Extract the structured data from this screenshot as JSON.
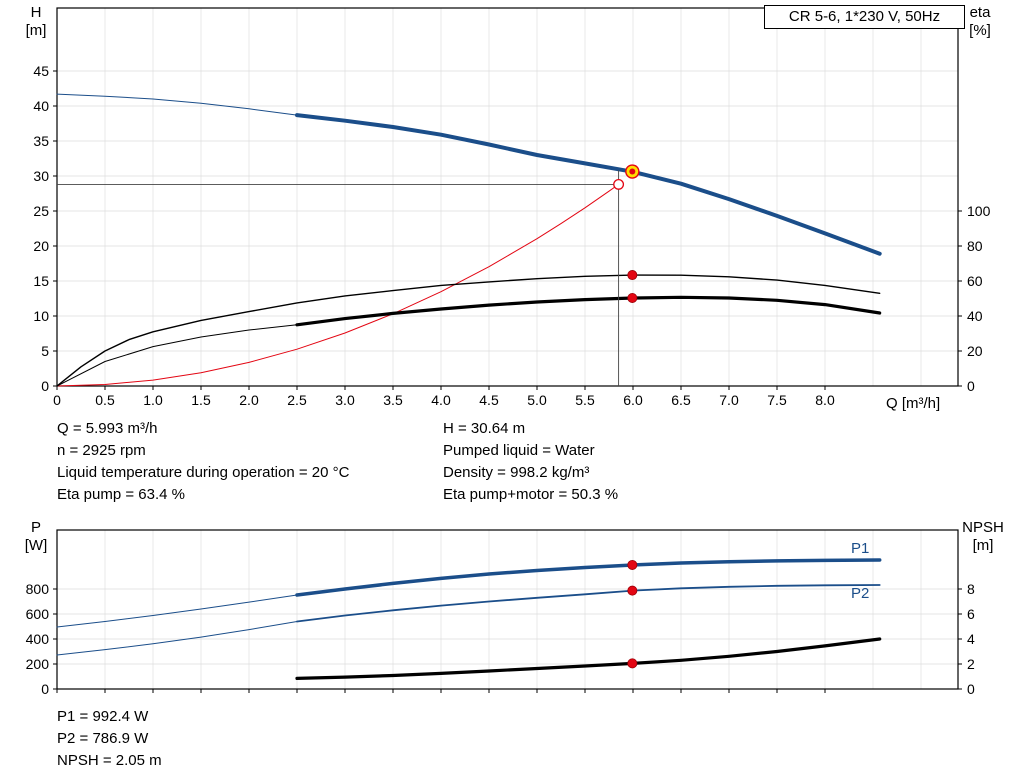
{
  "header": {
    "title_box": "CR 5-6, 1*230 V, 50Hz"
  },
  "top_chart": {
    "left_axis_title": "H",
    "left_axis_unit": "[m]",
    "right_axis_title": "eta",
    "right_axis_unit": "[%]",
    "x_axis_title": "Q [m³/h]"
  },
  "bottom_chart": {
    "left_axis_title": "P",
    "left_axis_unit": "[W]",
    "right_axis_title": "NPSH",
    "right_axis_unit": "[m]",
    "p1_label": "P1",
    "p2_label": "P2"
  },
  "info": {
    "left": [
      "Q = 5.993 m³/h",
      "n = 2925 rpm",
      "Liquid temperature during operation = 20 °C",
      "Eta pump = 63.4 %"
    ],
    "right": [
      "H = 30.64 m",
      "Pumped liquid = Water",
      "Density = 998.2 kg/m³",
      "Eta pump+motor = 50.3 %"
    ]
  },
  "results": [
    "P1 = 992.4 W",
    "P2 = 786.9 W",
    "NPSH = 2.05 m"
  ],
  "colors": {
    "curve_blue": "#1b4e8a",
    "curve_black": "#000000",
    "curve_red": "#e30613",
    "dot_red": "#e30613",
    "duty_yellow": "#ffdf00",
    "grid_gray": "#dedede"
  },
  "chart_data": [
    {
      "id": "qh-eta",
      "type": "line",
      "title": "CR 5-6, 1*230 V, 50Hz",
      "xlabel": "Q [m³/h]",
      "x_ticks": [
        0,
        0.5,
        1,
        1.5,
        2,
        2.5,
        3,
        3.5,
        4,
        4.5,
        5,
        5.5,
        6,
        6.5,
        7,
        7.5,
        8
      ],
      "x_tick_labels": [
        "0",
        "0.5",
        "1.0",
        "1.5",
        "2.0",
        "2.5",
        "3.0",
        "3.5",
        "4.0",
        "4.5",
        "5.0",
        "5.5",
        "6.0",
        "6.5",
        "7.0",
        "7.5",
        "8.0"
      ],
      "x_grid_extra": [
        8.5,
        9
      ],
      "left_axis": {
        "label": "H [m]",
        "ticks": [
          0,
          5,
          10,
          15,
          20,
          25,
          30,
          35,
          40,
          45
        ],
        "max": 54
      },
      "right_axis": {
        "label": "eta [%]",
        "ticks": [
          0,
          20,
          40,
          60,
          80,
          100
        ],
        "max": 216
      },
      "series": [
        {
          "name": "system-curve",
          "axis": "left",
          "color": "#e30613",
          "width": 1,
          "points": [
            [
              0,
              0
            ],
            [
              0.5,
              0.21
            ],
            [
              1,
              0.84
            ],
            [
              1.5,
              1.89
            ],
            [
              2,
              3.37
            ],
            [
              2.5,
              5.26
            ],
            [
              3,
              7.57
            ],
            [
              3.5,
              10.31
            ],
            [
              4,
              13.47
            ],
            [
              4.5,
              17.04
            ],
            [
              5,
              21.04
            ],
            [
              5.25,
              23.2
            ],
            [
              5.5,
              25.46
            ],
            [
              5.75,
              27.83
            ],
            [
              5.85,
              28.8
            ]
          ]
        },
        {
          "name": "eta-pump",
          "axis": "right",
          "color": "#000000",
          "width": 1.4,
          "points": [
            [
              0,
              0
            ],
            [
              0.25,
              11
            ],
            [
              0.5,
              20
            ],
            [
              0.75,
              26.5
            ],
            [
              1,
              31
            ],
            [
              1.5,
              37.5
            ],
            [
              2,
              42.5
            ],
            [
              2.5,
              47.5
            ],
            [
              3,
              51.5
            ],
            [
              3.5,
              54.5
            ],
            [
              4,
              57.5
            ],
            [
              4.5,
              59.5
            ],
            [
              5,
              61.3
            ],
            [
              5.5,
              62.7
            ],
            [
              6,
              63.4
            ],
            [
              6.5,
              63.3
            ],
            [
              7,
              62.4
            ],
            [
              7.5,
              60.5
            ],
            [
              8,
              57.5
            ],
            [
              8.57,
              53
            ]
          ]
        },
        {
          "name": "eta-pump-motor-lead",
          "axis": "right",
          "color": "#000000",
          "width": 1,
          "points": [
            [
              0,
              0
            ],
            [
              0.5,
              14
            ],
            [
              1,
              22.5
            ],
            [
              1.5,
              28
            ],
            [
              2,
              32
            ],
            [
              2.5,
              35
            ]
          ]
        },
        {
          "name": "eta-pump-motor",
          "axis": "right",
          "color": "#000000",
          "width": 3.2,
          "points": [
            [
              2.5,
              35
            ],
            [
              3,
              38.5
            ],
            [
              3.5,
              41.5
            ],
            [
              4,
              44
            ],
            [
              4.5,
              46.2
            ],
            [
              5,
              48
            ],
            [
              5.5,
              49.4
            ],
            [
              6,
              50.3
            ],
            [
              6.5,
              50.7
            ],
            [
              7,
              50.3
            ],
            [
              7.5,
              49
            ],
            [
              8,
              46.5
            ],
            [
              8.57,
              41.7
            ]
          ]
        },
        {
          "name": "qh-lead",
          "axis": "left",
          "color": "#1b4e8a",
          "width": 1,
          "points": [
            [
              0,
              41.7
            ],
            [
              0.5,
              41.4
            ],
            [
              1,
              41.0
            ],
            [
              1.5,
              40.4
            ],
            [
              2,
              39.6
            ],
            [
              2.5,
              38.7
            ]
          ]
        },
        {
          "name": "qh-curve",
          "axis": "left",
          "color": "#1b4e8a",
          "width": 4,
          "points": [
            [
              2.5,
              38.7
            ],
            [
              3,
              37.9
            ],
            [
              3.5,
              37.0
            ],
            [
              4,
              35.9
            ],
            [
              4.5,
              34.5
            ],
            [
              5,
              33.0
            ],
            [
              5.5,
              31.8
            ],
            [
              6,
              30.6
            ],
            [
              6.5,
              28.9
            ],
            [
              7,
              26.7
            ],
            [
              7.5,
              24.3
            ],
            [
              8,
              21.8
            ],
            [
              8.57,
              18.9
            ]
          ]
        }
      ],
      "markers": [
        {
          "q": 5.85,
          "value": 28.8,
          "axis": "left",
          "style": "open",
          "crosshair": true
        },
        {
          "q": 5.993,
          "value": 63.4,
          "axis": "right",
          "style": "dot"
        },
        {
          "q": 5.993,
          "value": 50.3,
          "axis": "right",
          "style": "dot"
        },
        {
          "q": 5.993,
          "value": 30.64,
          "axis": "left",
          "style": "duty"
        }
      ]
    },
    {
      "id": "power-npsh",
      "type": "line",
      "x_ticks": [
        0,
        0.5,
        1,
        1.5,
        2,
        2.5,
        3,
        3.5,
        4,
        4.5,
        5,
        5.5,
        6,
        6.5,
        7,
        7.5,
        8
      ],
      "x_grid_extra": [
        8.5,
        9
      ],
      "left_axis": {
        "label": "P [W]",
        "ticks": [
          0,
          200,
          400,
          600,
          800
        ],
        "max": 1272
      },
      "right_axis": {
        "label": "NPSH [m]",
        "ticks": [
          0,
          2,
          4,
          6,
          8
        ],
        "max": 12.72
      },
      "series": [
        {
          "name": "p1-lead",
          "axis": "left",
          "color": "#1b4e8a",
          "width": 1,
          "points": [
            [
              0,
              496
            ],
            [
              0.5,
              540
            ],
            [
              1,
              588
            ],
            [
              1.5,
              640
            ],
            [
              2,
              695
            ],
            [
              2.5,
              752
            ]
          ]
        },
        {
          "name": "p1-curve",
          "axis": "left",
          "color": "#1b4e8a",
          "width": 3.5,
          "points": [
            [
              2.5,
              752
            ],
            [
              3,
              800
            ],
            [
              3.5,
              845
            ],
            [
              4,
              885
            ],
            [
              4.5,
              920
            ],
            [
              5,
              948
            ],
            [
              5.5,
              972
            ],
            [
              6,
              992
            ],
            [
              6.5,
              1008
            ],
            [
              7,
              1018
            ],
            [
              7.5,
              1025
            ],
            [
              8,
              1029
            ],
            [
              8.57,
              1032
            ]
          ]
        },
        {
          "name": "p2-lead",
          "axis": "left",
          "color": "#1b4e8a",
          "width": 1,
          "points": [
            [
              0,
              272
            ],
            [
              0.5,
              315
            ],
            [
              1,
              362
            ],
            [
              1.5,
              415
            ],
            [
              2,
              475
            ],
            [
              2.5,
              540
            ]
          ]
        },
        {
          "name": "p2-curve",
          "axis": "left",
          "color": "#1b4e8a",
          "width": 1.8,
          "points": [
            [
              2.5,
              540
            ],
            [
              3,
              588
            ],
            [
              3.5,
              630
            ],
            [
              4,
              667
            ],
            [
              4.5,
              700
            ],
            [
              5,
              730
            ],
            [
              5.5,
              758
            ],
            [
              6,
              787
            ],
            [
              6.5,
              806
            ],
            [
              7,
              818
            ],
            [
              7.5,
              826
            ],
            [
              8,
              830
            ],
            [
              8.57,
              832
            ]
          ]
        },
        {
          "name": "npsh-curve",
          "axis": "right",
          "color": "#000000",
          "width": 3.2,
          "points": [
            [
              2.5,
              0.85
            ],
            [
              3,
              0.95
            ],
            [
              3.5,
              1.08
            ],
            [
              4,
              1.25
            ],
            [
              4.5,
              1.44
            ],
            [
              5,
              1.64
            ],
            [
              5.5,
              1.84
            ],
            [
              6,
              2.05
            ],
            [
              6.5,
              2.3
            ],
            [
              7,
              2.62
            ],
            [
              7.5,
              3.0
            ],
            [
              8,
              3.45
            ],
            [
              8.57,
              4.0
            ]
          ]
        }
      ],
      "markers": [
        {
          "q": 5.993,
          "value": 992.4,
          "axis": "left",
          "style": "dot"
        },
        {
          "q": 5.993,
          "value": 786.9,
          "axis": "left",
          "style": "dot"
        },
        {
          "q": 5.993,
          "value": 2.05,
          "axis": "right",
          "style": "dot"
        }
      ]
    }
  ]
}
